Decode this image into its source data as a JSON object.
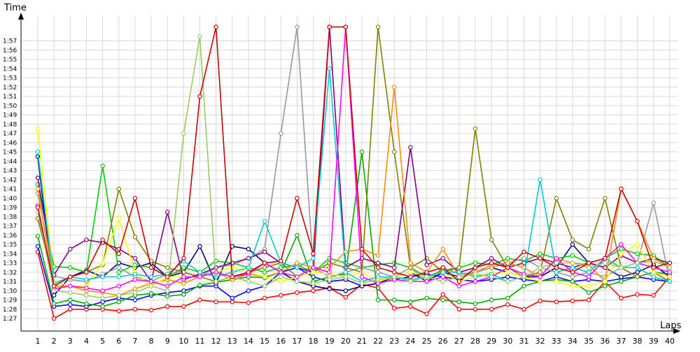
{
  "chart_data": {
    "type": "line",
    "title": "",
    "xlabel": "Laps",
    "ylabel": "Time",
    "xlim": [
      1,
      40
    ],
    "ylim": [
      86.5,
      118.5
    ],
    "grid": true,
    "legend": "none",
    "x_ticks": [
      "1",
      "2",
      "3",
      "4",
      "5",
      "6",
      "7",
      "8",
      "9",
      "10",
      "11",
      "12",
      "13",
      "14",
      "15",
      "16",
      "17",
      "18",
      "19",
      "20",
      "21",
      "22",
      "23",
      "24",
      "25",
      "26",
      "27",
      "28",
      "29",
      "30",
      "31",
      "32",
      "33",
      "34",
      "35",
      "36",
      "37",
      "38",
      "39",
      "40"
    ],
    "y_ticks": [
      "1:27",
      "1:28",
      "1:29",
      "1:30",
      "1:31",
      "1:32",
      "1:33",
      "1:34",
      "1:35",
      "1:36",
      "1:37",
      "1:38",
      "1:39",
      "1:40",
      "1:41",
      "1:42",
      "1:43",
      "1:44",
      "1:45",
      "1:46",
      "1:47",
      "1:48",
      "1:49",
      "1:50",
      "1:51",
      "1:52",
      "1:53",
      "1:54",
      "1:55",
      "1:56",
      "1:57"
    ],
    "y_tick_values": [
      87,
      88,
      89,
      90,
      91,
      92,
      93,
      94,
      95,
      96,
      97,
      98,
      99,
      100,
      101,
      102,
      103,
      104,
      105,
      106,
      107,
      108,
      109,
      110,
      111,
      112,
      113,
      114,
      115,
      116,
      117
    ],
    "x": [
      1,
      2,
      3,
      4,
      5,
      6,
      7,
      8,
      9,
      10,
      11,
      12,
      13,
      14,
      15,
      16,
      17,
      18,
      19,
      20,
      21,
      22,
      23,
      24,
      25,
      26,
      27,
      28,
      29,
      30,
      31,
      32,
      33,
      34,
      35,
      36,
      37,
      38,
      39,
      40
    ],
    "series": [
      {
        "color": "#ff0000",
        "values": [
          94.2,
          87.0,
          88.0,
          88.0,
          88.0,
          87.8,
          88.0,
          87.9,
          88.3,
          88.3,
          89.0,
          88.8,
          88.8,
          88.7,
          89.2,
          89.5,
          89.8,
          90.0,
          90.3,
          89.3,
          90.7,
          90.3,
          88.1,
          88.3,
          87.5,
          89.6,
          88.0,
          88.0,
          88.0,
          88.5,
          88.0,
          88.9,
          88.8,
          88.9,
          89.0,
          91.0,
          89.2,
          89.6,
          89.5,
          91.5
        ]
      },
      {
        "color": "#0000ff",
        "values": [
          94.8,
          88.3,
          88.5,
          88.3,
          88.8,
          89.2,
          89.0,
          89.5,
          89.8,
          90.0,
          90.5,
          90.5,
          89.2,
          90.0,
          90.5,
          92.0,
          92.5,
          91.5,
          91.0,
          91.2,
          90.5,
          90.8,
          91.2,
          91.5,
          91.8,
          91.5,
          91.2,
          91.0,
          91.2,
          91.5,
          91.2,
          91.0,
          91.5,
          91.0,
          91.2,
          91.0,
          91.3,
          91.5,
          91.2,
          91.0
        ]
      },
      {
        "color": "#00aa00",
        "values": [
          95.9,
          88.6,
          89.0,
          88.6,
          88.3,
          88.8,
          89.5,
          89.7,
          89.4,
          89.6,
          90.6,
          90.9,
          91.2,
          91.5,
          91.4,
          92.0,
          96.0,
          91.0,
          91.5,
          91.8,
          105.0,
          89.0,
          89.0,
          88.8,
          89.2,
          89.0,
          88.8,
          88.6,
          89.0,
          89.2,
          90.5,
          91.0,
          91.2,
          91.0,
          89.8,
          90.5,
          91.0,
          91.5,
          92.0,
          91.8
        ]
      },
      {
        "color": "#000080",
        "values": [
          104.5,
          89.5,
          91.5,
          92.2,
          91.5,
          93.0,
          92.5,
          93.0,
          91.5,
          92.0,
          94.8,
          90.8,
          94.8,
          94.5,
          93.0,
          92.0,
          91.0,
          90.5,
          90.2,
          90.0,
          90.5,
          90.8,
          91.5,
          92.0,
          91.0,
          92.0,
          91.5,
          92.0,
          92.5,
          92.0,
          91.5,
          91.5,
          92.5,
          95.0,
          93.0,
          92.5,
          91.5,
          92.0,
          92.8,
          91.5
        ]
      },
      {
        "color": "#00cc00",
        "values": [
          101.5,
          92.6,
          92.5,
          92.0,
          103.5,
          92.0,
          92.8,
          92.5,
          91.5,
          92.5,
          92.0,
          93.2,
          93.0,
          92.5,
          92.0,
          92.5,
          92.8,
          92.0,
          93.5,
          93.0,
          92.5,
          92.8,
          93.0,
          92.5,
          91.5,
          92.2,
          92.5,
          93.0,
          92.8,
          93.5,
          93.2,
          94.0,
          93.5,
          93.8,
          93.0,
          93.5,
          94.5,
          94.0,
          93.8,
          92.5
        ]
      },
      {
        "color": "#999999",
        "values": [
          100.5,
          91.6,
          91.2,
          91.0,
          91.8,
          92.5,
          91.5,
          91.0,
          91.8,
          92.0,
          91.5,
          92.5,
          92.8,
          93.5,
          94.5,
          107.0,
          118.5,
          92.5,
          91.5,
          92.0,
          92.5,
          92.0,
          91.5,
          92.5,
          91.0,
          92.5,
          91.8,
          92.0,
          92.5,
          93.0,
          93.5,
          92.5,
          92.0,
          91.5,
          92.0,
          91.5,
          92.5,
          93.0,
          99.5,
          91.0
        ]
      },
      {
        "color": "#808000",
        "values": [
          97.8,
          90.8,
          91.5,
          92.0,
          92.8,
          101.0,
          95.8,
          93.2,
          92.5,
          92.0,
          91.5,
          91.0,
          91.5,
          92.0,
          92.5,
          93.0,
          91.5,
          92.0,
          93.0,
          92.5,
          92.0,
          118.5,
          105.0,
          92.5,
          93.5,
          92.0,
          92.5,
          107.5,
          95.5,
          92.5,
          91.5,
          92.0,
          100.0,
          95.5,
          94.5,
          100.0,
          92.5,
          91.5,
          92.0,
          91.0
        ]
      },
      {
        "color": "#800080",
        "values": [
          102.2,
          91.7,
          94.5,
          95.5,
          95.2,
          94.5,
          93.5,
          91.0,
          98.5,
          91.2,
          91.8,
          92.5,
          93.0,
          93.5,
          94.2,
          93.0,
          92.5,
          92.0,
          118.5,
          92.5,
          93.5,
          93.0,
          92.5,
          105.5,
          92.8,
          93.5,
          92.0,
          92.5,
          93.5,
          92.5,
          93.0,
          93.5,
          93.0,
          92.5,
          93.0,
          92.5,
          93.8,
          93.0,
          93.5,
          93.0
        ]
      },
      {
        "color": "#ff8c00",
        "values": [
          101.0,
          90.5,
          90.5,
          90.0,
          89.8,
          89.5,
          90.2,
          90.8,
          91.2,
          90.8,
          91.5,
          92.0,
          91.2,
          91.8,
          91.5,
          92.0,
          93.0,
          92.5,
          92.5,
          94.2,
          94.5,
          93.8,
          112.0,
          93.0,
          92.0,
          94.5,
          91.5,
          92.0,
          92.8,
          93.0,
          92.5,
          91.5,
          93.5,
          93.0,
          92.8,
          91.0,
          101.0,
          97.5,
          93.5,
          92.5
        ]
      },
      {
        "color": "#ffff00",
        "values": [
          107.5,
          91.0,
          90.5,
          90.5,
          93.0,
          97.8,
          92.0,
          90.5,
          91.5,
          91.5,
          91.5,
          92.0,
          92.5,
          92.0,
          91.5,
          91.0,
          91.5,
          92.0,
          91.8,
          91.5,
          92.0,
          91.0,
          91.5,
          92.0,
          91.5,
          92.0,
          91.0,
          91.5,
          92.0,
          92.0,
          91.5,
          91.0,
          91.0,
          90.5,
          90.5,
          91.0,
          94.0,
          95.0,
          92.0,
          91.5
        ]
      },
      {
        "color": "#00cccc",
        "values": [
          105.0,
          90.8,
          91.5,
          91.2,
          91.5,
          91.5,
          91.8,
          91.5,
          91.8,
          93.2,
          92.0,
          91.5,
          92.0,
          92.5,
          97.5,
          93.0,
          92.5,
          93.5,
          114.0,
          92.0,
          91.0,
          91.5,
          91.5,
          91.2,
          91.5,
          92.0,
          92.0,
          91.5,
          91.8,
          91.0,
          91.5,
          102.0,
          92.0,
          92.5,
          92.0,
          93.5,
          92.5,
          92.5,
          91.5,
          91.0
        ]
      },
      {
        "color": "#ff00ff",
        "values": [
          99.2,
          90.2,
          90.5,
          90.3,
          90.0,
          90.5,
          91.2,
          91.0,
          90.5,
          91.5,
          91.5,
          92.0,
          91.5,
          91.8,
          93.0,
          92.0,
          91.5,
          92.5,
          92.0,
          118.5,
          91.5,
          90.8,
          91.2,
          91.0,
          91.0,
          91.5,
          90.5,
          91.0,
          91.5,
          92.5,
          91.8,
          91.5,
          93.5,
          92.0,
          91.5,
          93.5,
          95.0,
          93.0,
          92.5,
          92.0
        ]
      },
      {
        "color": "#99cc66",
        "values": [
          98.5,
          90.0,
          89.8,
          89.5,
          89.2,
          89.5,
          89.8,
          90.5,
          90.0,
          107.0,
          117.5,
          91.0,
          91.5,
          91.0,
          90.5,
          91.5,
          91.0,
          90.8,
          91.2,
          91.5,
          90.8,
          91.2,
          91.5,
          91.0,
          91.5,
          91.0,
          91.5,
          91.8,
          91.5,
          91.0,
          91.5,
          92.5,
          93.0,
          93.0,
          92.5,
          93.0,
          92.5,
          93.0,
          93.2,
          92.5
        ]
      },
      {
        "color": "#cc0000",
        "values": [
          99.0,
          90.5,
          91.5,
          92.0,
          95.5,
          94.0,
          100.0,
          92.5,
          91.5,
          93.5,
          111.0,
          118.5,
          91.5,
          92.0,
          93.0,
          93.2,
          100.0,
          94.0,
          118.5,
          118.5,
          94.5,
          92.5,
          92.0,
          91.5,
          92.0,
          92.5,
          91.0,
          92.5,
          93.0,
          92.5,
          94.2,
          93.5,
          92.5,
          92.0,
          93.0,
          93.5,
          101.0,
          97.5,
          92.5,
          93.0
        ]
      }
    ]
  }
}
